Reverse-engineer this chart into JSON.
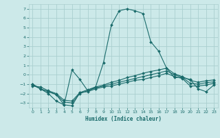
{
  "xlabel": "Humidex (Indice chaleur)",
  "xlim": [
    -0.5,
    23.5
  ],
  "ylim": [
    -3.5,
    7.5
  ],
  "yticks": [
    -3,
    -2,
    -1,
    0,
    1,
    2,
    3,
    4,
    5,
    6,
    7
  ],
  "xticks": [
    0,
    1,
    2,
    3,
    4,
    5,
    6,
    7,
    8,
    9,
    10,
    11,
    12,
    13,
    14,
    15,
    16,
    17,
    18,
    19,
    20,
    21,
    22,
    23
  ],
  "background_color": "#cce9e9",
  "grid_color": "#aacfcf",
  "line_color": "#1a6b6b",
  "line1_x": [
    0,
    1,
    2,
    3,
    4,
    5,
    6,
    7,
    8,
    9,
    10,
    11,
    12,
    13,
    14,
    15,
    16,
    17,
    18,
    19,
    20,
    21,
    22,
    23
  ],
  "line1_y": [
    -1.0,
    -1.5,
    -2.0,
    -2.8,
    -3.2,
    0.5,
    -0.5,
    -1.7,
    -1.3,
    1.3,
    5.3,
    6.8,
    7.0,
    6.8,
    6.5,
    3.5,
    2.5,
    0.7,
    -0.3,
    -0.3,
    -0.5,
    -1.5,
    -1.8,
    -1.1
  ],
  "line2_x": [
    0,
    1,
    2,
    3,
    4,
    5,
    6,
    7,
    8,
    9,
    10,
    11,
    12,
    13,
    14,
    15,
    16,
    17,
    18,
    19,
    20,
    21,
    22,
    23
  ],
  "line2_y": [
    -1.0,
    -1.5,
    -1.8,
    -2.1,
    -3.2,
    -3.3,
    -1.9,
    -1.8,
    -1.5,
    -1.3,
    -1.2,
    -1.0,
    -0.8,
    -0.6,
    -0.5,
    -0.3,
    -0.1,
    0.15,
    -0.2,
    -0.4,
    -1.2,
    -1.2,
    -1.1,
    -0.9
  ],
  "line3_x": [
    0,
    1,
    2,
    3,
    4,
    5,
    6,
    7,
    8,
    9,
    10,
    11,
    12,
    13,
    14,
    15,
    16,
    17,
    18,
    19,
    20,
    21,
    22,
    23
  ],
  "line3_y": [
    -1.1,
    -1.5,
    -1.8,
    -2.1,
    -2.9,
    -3.0,
    -2.0,
    -1.7,
    -1.4,
    -1.2,
    -1.0,
    -0.8,
    -0.6,
    -0.4,
    -0.2,
    0.0,
    0.2,
    0.4,
    0.0,
    -0.3,
    -0.9,
    -1.0,
    -0.85,
    -0.75
  ],
  "line4_x": [
    0,
    1,
    2,
    3,
    4,
    5,
    6,
    7,
    8,
    9,
    10,
    11,
    12,
    13,
    14,
    15,
    16,
    17,
    18,
    19,
    20,
    21,
    22,
    23
  ],
  "line4_y": [
    -1.2,
    -1.3,
    -1.7,
    -2.0,
    -2.7,
    -2.8,
    -1.9,
    -1.6,
    -1.3,
    -1.1,
    -0.8,
    -0.6,
    -0.3,
    -0.1,
    0.15,
    0.35,
    0.5,
    0.7,
    0.1,
    -0.2,
    -0.6,
    -0.8,
    -0.65,
    -0.55
  ]
}
